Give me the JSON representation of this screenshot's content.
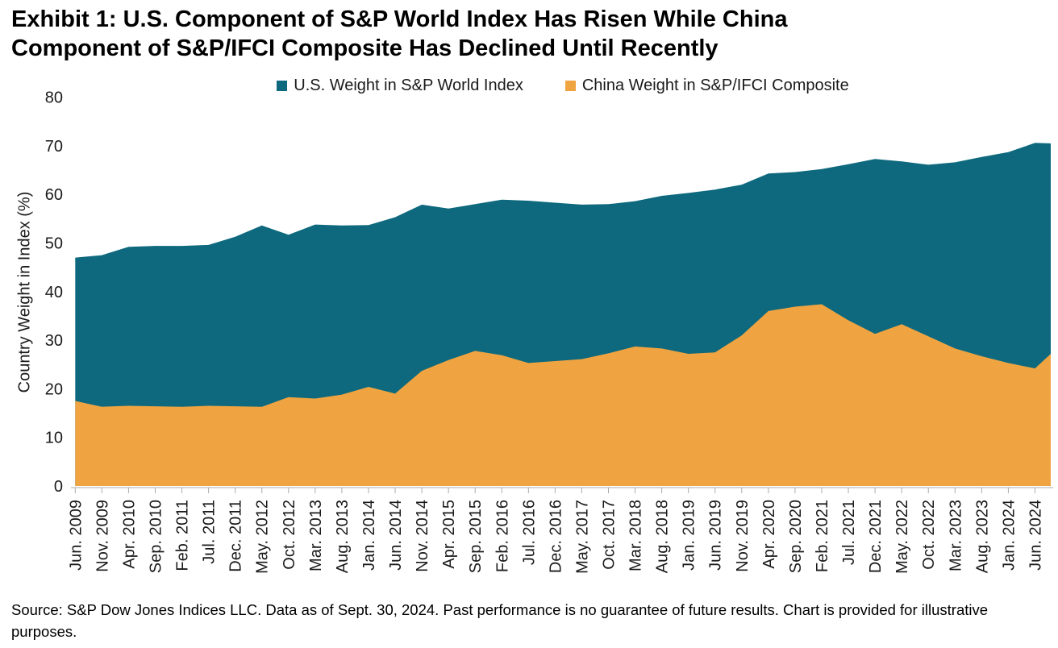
{
  "title_lines": [
    "Exhibit 1: U.S. Component of S&P World Index Has Risen While China",
    "Component of S&P/IFCI Composite Has Declined Until Recently"
  ],
  "legend": [
    {
      "label": "U.S. Weight in S&P World Index",
      "color": "#0e697e"
    },
    {
      "label": "China Weight in S&P/IFCI Composite",
      "color": "#f0a441"
    }
  ],
  "source_note": "Source: S&P Dow Jones Indices LLC. Data as of Sept. 30, 2024. Past performance is no guarantee of future results. Chart is provided for illustrative purposes.",
  "chart_data": {
    "type": "area",
    "mode": "overlapping",
    "title": "Exhibit 1: U.S. Component of S&P World Index Has Risen While China Component of S&P/IFCI Composite Has Declined Until Recently",
    "xlabel": "",
    "ylabel": "Country Weight in Index (%)",
    "ylim": [
      0,
      80
    ],
    "yticks": [
      0,
      10,
      20,
      30,
      40,
      50,
      60,
      70,
      80
    ],
    "grid": false,
    "legend_position": "top-center",
    "axis_color": "#ababab",
    "text_color": "#1a1a1a",
    "categories": [
      "Jun. 2009",
      "Nov. 2009",
      "Apr. 2010",
      "Sep. 2010",
      "Feb. 2011",
      "Jul. 2011",
      "Dec. 2011",
      "May. 2012",
      "Oct. 2012",
      "Mar. 2013",
      "Aug. 2013",
      "Jan. 2014",
      "Jun. 2014",
      "Nov. 2014",
      "Apr. 2015",
      "Sep. 2015",
      "Feb. 2016",
      "Jul. 2016",
      "Dec. 2016",
      "May. 2017",
      "Oct. 2017",
      "Mar. 2018",
      "Aug. 2018",
      "Jan. 2019",
      "Jun. 2019",
      "Nov. 2019",
      "Apr. 2020",
      "Sep. 2020",
      "Feb. 2021",
      "Jul. 2021",
      "Dec. 2021",
      "May. 2022",
      "Oct. 2022",
      "Mar. 2023",
      "Aug. 2023",
      "Jan. 2024",
      "Jun. 2024"
    ],
    "series": [
      {
        "name": "U.S. Weight in S&P World Index",
        "color": "#0e697e",
        "values": [
          47.0,
          47.5,
          49.2,
          49.4,
          49.4,
          49.6,
          51.3,
          53.6,
          51.7,
          53.8,
          53.6,
          53.7,
          55.3,
          57.9,
          57.1,
          58.0,
          58.9,
          58.7,
          58.3,
          57.9,
          58.0,
          58.6,
          59.7,
          60.3,
          61.0,
          62.0,
          64.3,
          64.6,
          65.2,
          66.2,
          67.3,
          66.8,
          66.1,
          66.6,
          67.7,
          68.7,
          70.6,
          70.5
        ]
      },
      {
        "name": "China Weight in S&P/IFCI Composite",
        "color": "#f0a441",
        "values": [
          17.5,
          16.3,
          16.5,
          16.4,
          16.3,
          16.5,
          16.4,
          16.3,
          18.3,
          18.0,
          18.8,
          20.4,
          19.0,
          23.7,
          25.9,
          27.8,
          26.9,
          25.3,
          25.7,
          26.1,
          27.3,
          28.7,
          28.3,
          27.2,
          27.5,
          31.0,
          36.0,
          36.9,
          37.4,
          34.1,
          31.3,
          33.3,
          30.8,
          28.3,
          26.7,
          25.3,
          24.2,
          27.2
        ]
      }
    ],
    "series_note": "Each series has 38 values: one per labeled category plus a final unlabeled point (data through Sept. 30, 2024) drawn past the last tick at the right edge of the plot."
  }
}
